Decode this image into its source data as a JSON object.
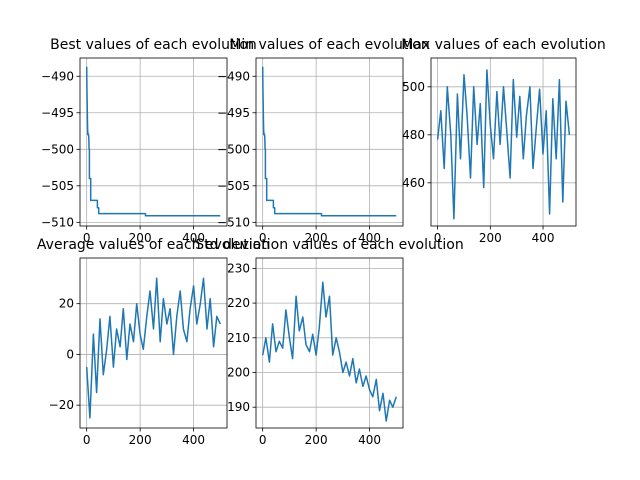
{
  "colors": {
    "line": "#1f77b4",
    "grid": "#b0b0b0",
    "axis": "#000000",
    "background": "#ffffff"
  },
  "chart_data": [
    {
      "type": "line",
      "title": "Best values of each evolution",
      "xlim": [
        -25,
        525
      ],
      "ylim": [
        -510.5,
        -487.5
      ],
      "xticks": [
        0,
        200,
        400
      ],
      "yticks": [
        -490,
        -495,
        -500,
        -505,
        -510
      ],
      "grid": true,
      "x": [
        0,
        1,
        2,
        3,
        4,
        5,
        6,
        7,
        8,
        9,
        10,
        10,
        15,
        15,
        20,
        20,
        40,
        40,
        45,
        45,
        80,
        80,
        220,
        220,
        500
      ],
      "y": [
        -488.7,
        -491.5,
        -494.0,
        -496.5,
        -498.0,
        -497.8,
        -498.0,
        -498.0,
        -498.5,
        -500.0,
        -500.0,
        -504.0,
        -504.0,
        -507.0,
        -507.0,
        -507.0,
        -507.0,
        -508.0,
        -508.0,
        -508.8,
        -508.8,
        -508.8,
        -508.8,
        -509.1,
        -509.1
      ]
    },
    {
      "type": "line",
      "title": "Min values of each evolution",
      "xlim": [
        -25,
        525
      ],
      "ylim": [
        -510.5,
        -487.5
      ],
      "xticks": [
        0,
        200,
        400
      ],
      "yticks": [
        -490,
        -495,
        -500,
        -505,
        -510
      ],
      "grid": true,
      "x": [
        0,
        1,
        2,
        3,
        4,
        5,
        6,
        7,
        8,
        9,
        10,
        10,
        15,
        15,
        20,
        20,
        40,
        40,
        45,
        45,
        80,
        80,
        220,
        220,
        500
      ],
      "y": [
        -488.7,
        -491.5,
        -494.0,
        -496.5,
        -498.0,
        -497.8,
        -498.0,
        -498.0,
        -498.5,
        -500.0,
        -500.0,
        -504.0,
        -504.0,
        -507.0,
        -507.0,
        -507.0,
        -507.0,
        -508.0,
        -508.0,
        -508.8,
        -508.8,
        -508.8,
        -508.8,
        -509.1,
        -509.1
      ]
    },
    {
      "type": "line",
      "title": "Max values of each evolution",
      "xlim": [
        -25,
        525
      ],
      "ylim": [
        442,
        512
      ],
      "xticks": [
        0,
        200,
        400
      ],
      "yticks": [
        460,
        480,
        500
      ],
      "grid": true,
      "x": [
        0,
        12,
        25,
        37,
        50,
        62,
        75,
        87,
        100,
        112,
        125,
        137,
        150,
        162,
        175,
        187,
        200,
        212,
        225,
        237,
        250,
        262,
        275,
        287,
        300,
        312,
        325,
        337,
        350,
        362,
        375,
        387,
        400,
        412,
        425,
        437,
        450,
        462,
        475,
        487,
        500
      ],
      "y": [
        478,
        490,
        466,
        500,
        480,
        445,
        497,
        470,
        505,
        488,
        462,
        500,
        476,
        493,
        458,
        507,
        484,
        470,
        498,
        476,
        500,
        482,
        462,
        503,
        479,
        496,
        470,
        488,
        500,
        466,
        484,
        499,
        472,
        490,
        447,
        495,
        470,
        503,
        452,
        494,
        480
      ]
    },
    {
      "type": "line",
      "title": "Average values of each evolution",
      "xlim": [
        -25,
        525
      ],
      "ylim": [
        -29,
        38
      ],
      "xticks": [
        0,
        200,
        400
      ],
      "yticks": [
        -20,
        0,
        20
      ],
      "grid": true,
      "x": [
        0,
        12,
        25,
        37,
        50,
        62,
        75,
        87,
        100,
        112,
        125,
        137,
        150,
        162,
        175,
        187,
        200,
        212,
        225,
        237,
        250,
        262,
        275,
        287,
        300,
        312,
        325,
        337,
        350,
        362,
        375,
        387,
        400,
        412,
        425,
        437,
        450,
        462,
        475,
        487,
        500
      ],
      "y": [
        -5,
        -25,
        8,
        -15,
        14,
        -8,
        2,
        15,
        -5,
        10,
        3,
        18,
        -2,
        12,
        5,
        20,
        8,
        2,
        15,
        25,
        10,
        30,
        5,
        22,
        12,
        18,
        0,
        15,
        25,
        10,
        5,
        18,
        27,
        12,
        20,
        30,
        10,
        22,
        3,
        15,
        12
      ]
    },
    {
      "type": "line",
      "title": "Std deviation values of each evolution",
      "xlim": [
        -25,
        525
      ],
      "ylim": [
        184,
        233
      ],
      "xticks": [
        0,
        200,
        400
      ],
      "yticks": [
        190,
        200,
        210,
        220,
        230
      ],
      "grid": true,
      "x": [
        0,
        12,
        25,
        37,
        50,
        62,
        75,
        87,
        100,
        112,
        125,
        137,
        150,
        162,
        175,
        187,
        200,
        212,
        225,
        237,
        250,
        262,
        275,
        287,
        300,
        312,
        325,
        337,
        350,
        362,
        375,
        387,
        400,
        412,
        425,
        437,
        450,
        462,
        475,
        487,
        500
      ],
      "y": [
        205,
        210,
        203,
        214,
        206,
        209,
        207,
        218,
        210,
        204,
        222,
        212,
        216,
        208,
        206,
        211,
        205,
        213,
        226,
        216,
        222,
        205,
        210,
        206,
        200,
        203,
        199,
        204,
        197,
        201,
        196,
        199,
        195,
        193,
        198,
        189,
        194,
        186,
        192,
        190,
        193
      ]
    }
  ]
}
